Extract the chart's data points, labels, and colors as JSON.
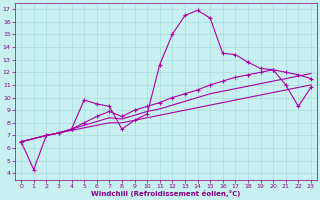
{
  "background_color": "#c8f0f0",
  "line_color": "#aa00aa",
  "grid_color": "#aadddd",
  "xlim": [
    -0.5,
    23.5
  ],
  "ylim": [
    3.5,
    17.5
  ],
  "xticks": [
    0,
    1,
    2,
    3,
    4,
    5,
    6,
    7,
    8,
    9,
    10,
    11,
    12,
    13,
    14,
    15,
    16,
    17,
    18,
    19,
    20,
    21,
    22,
    23
  ],
  "yticks": [
    4,
    5,
    6,
    7,
    8,
    9,
    10,
    11,
    12,
    13,
    14,
    15,
    16,
    17
  ],
  "xlabel": "Windchill (Refroidissement éolien,°C)",
  "line1_x": [
    0,
    1,
    2,
    3,
    4,
    5,
    6,
    7,
    8,
    9,
    10,
    11,
    12,
    13,
    14,
    15,
    16,
    17,
    18,
    19,
    20,
    21,
    22,
    23
  ],
  "line1_y": [
    6.5,
    4.3,
    7.0,
    7.2,
    7.5,
    9.8,
    9.5,
    9.3,
    7.5,
    8.2,
    8.7,
    12.6,
    15.0,
    16.5,
    16.9,
    16.3,
    13.5,
    13.4,
    12.8,
    12.3,
    12.2,
    11.0,
    9.3,
    10.8
  ],
  "line2_x": [
    0,
    2,
    3,
    4,
    5,
    6,
    7,
    8,
    9,
    10,
    11,
    12,
    13,
    14,
    15,
    16,
    17,
    18,
    19,
    20,
    21,
    22,
    23
  ],
  "line2_y": [
    6.5,
    7.0,
    7.2,
    7.5,
    8.0,
    8.5,
    8.9,
    8.5,
    9.0,
    9.3,
    9.6,
    10.0,
    10.3,
    10.6,
    11.0,
    11.3,
    11.6,
    11.8,
    12.0,
    12.2,
    12.0,
    11.8,
    11.5
  ],
  "line3_x": [
    0,
    2,
    3,
    4,
    5,
    6,
    7,
    8,
    9,
    10,
    11,
    12,
    13,
    14,
    15,
    16,
    17,
    18,
    19,
    20,
    21,
    22,
    23
  ],
  "line3_y": [
    6.5,
    7.0,
    7.2,
    7.5,
    7.8,
    8.1,
    8.4,
    8.3,
    8.6,
    8.9,
    9.1,
    9.4,
    9.7,
    10.0,
    10.3,
    10.5,
    10.7,
    10.9,
    11.1,
    11.3,
    11.5,
    11.7,
    11.9
  ],
  "line4_x": [
    0,
    2,
    3,
    4,
    5,
    6,
    7,
    8,
    9,
    10,
    11,
    12,
    13,
    14,
    15,
    16,
    17,
    18,
    19,
    20,
    21,
    22,
    23
  ],
  "line4_y": [
    6.5,
    7.0,
    7.2,
    7.4,
    7.6,
    7.8,
    8.0,
    8.0,
    8.2,
    8.4,
    8.6,
    8.8,
    9.0,
    9.2,
    9.4,
    9.6,
    9.8,
    10.0,
    10.2,
    10.4,
    10.6,
    10.8,
    11.0
  ]
}
